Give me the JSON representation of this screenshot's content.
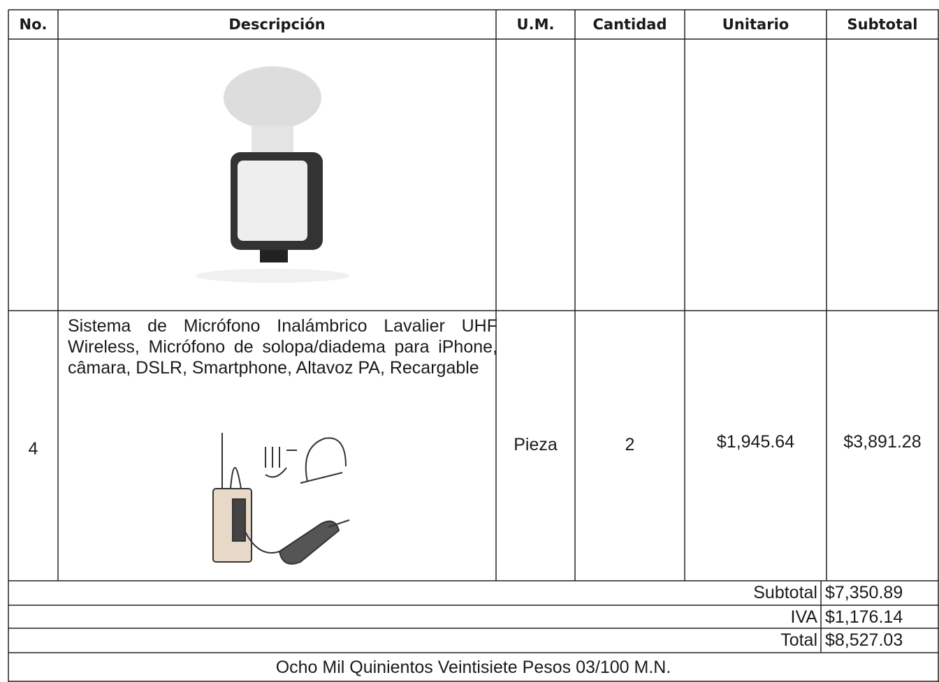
{
  "table": {
    "headers": [
      "No.",
      "Descripción",
      "U.M.",
      "Cantidad",
      "Unitario",
      "Subtotal"
    ],
    "item": {
      "no": "4",
      "description": "Sistema de Micrófono Inalámbrico Lavalier UHF Wireless, Micrófono de solopa/diadema para iPhone, câmara, DSLR, Smartphone, Altavoz PA, Recargable",
      "unit": "Pieza",
      "quantity": "2",
      "unit_price": "$1,945.64",
      "subtotal": "$3,891.28"
    },
    "totals": [
      {
        "label": "Subtotal",
        "value": "$7,350.89"
      },
      {
        "label": "IVA",
        "value": "$1,176.14"
      },
      {
        "label": "Total",
        "value": "$8,527.03"
      }
    ],
    "amount_in_words": "Ocho Mil Quinientos Veintisiete Pesos 03/100 M.N."
  }
}
